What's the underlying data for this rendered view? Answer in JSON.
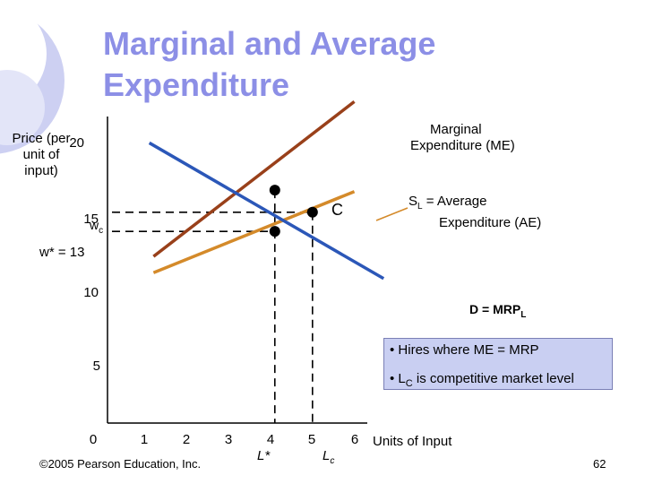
{
  "slide": {
    "title_line1": "Marginal and Average",
    "title_line2": "Expenditure",
    "footer": "©2005 Pearson Education, Inc.",
    "page_number": "62",
    "info_box": {
      "line1": "• Hires where ME = MRP",
      "line2_prefix": "• L",
      "line2_sub": "C",
      "line2_suffix": " is competitive market level"
    },
    "colors": {
      "title": "#8c8fe6",
      "me_curve": "#99401a",
      "ae_curve": "#d48a2a",
      "demand_curve": "#2b57b8",
      "box_fill": "#c9cff2"
    }
  },
  "chart_data": {
    "type": "line",
    "ylabel": "Price (per unit of input)",
    "xlabel": "Units of Input",
    "xlim": [
      0,
      6.6
    ],
    "ylim": [
      0,
      21
    ],
    "x_ticks": [
      "0",
      "1",
      "2",
      "3",
      "4",
      "5",
      "6"
    ],
    "y_ticks": [
      "5",
      "10",
      "15",
      "20"
    ],
    "series": [
      {
        "name": "Marginal Expenditure (ME)",
        "x": [
          1.1,
          5.9
        ],
        "y": [
          11.3,
          21.8
        ],
        "color": "#99401a"
      },
      {
        "name": "SL = Average Expenditure (AE)",
        "x": [
          1.1,
          5.9
        ],
        "y": [
          10.2,
          15.7
        ],
        "color": "#d48a2a"
      },
      {
        "name": "D = MRPL",
        "x": [
          1.0,
          6.6
        ],
        "y": [
          19.0,
          9.8
        ],
        "color": "#2b57b8"
      }
    ],
    "points": [
      {
        "x": 4.0,
        "y": 15.8
      },
      {
        "x": 4.0,
        "y": 13.0
      },
      {
        "x": 4.9,
        "y": 14.3
      }
    ],
    "labels": {
      "me": [
        "Marginal",
        "Expenditure (ME)"
      ],
      "ae_prefix": "S",
      "ae_sub": "L",
      "ae_line1_suffix": " = Average",
      "ae_line2": "Expenditure (AE)",
      "demand_prefix": "D = MRP",
      "demand_sub": "L",
      "point_c": "C",
      "wc_prefix": "w",
      "wc_sub": "c",
      "wstar": "w* = 13",
      "lstar": "L*",
      "lc_prefix": "L",
      "lc_sub": "c"
    }
  }
}
